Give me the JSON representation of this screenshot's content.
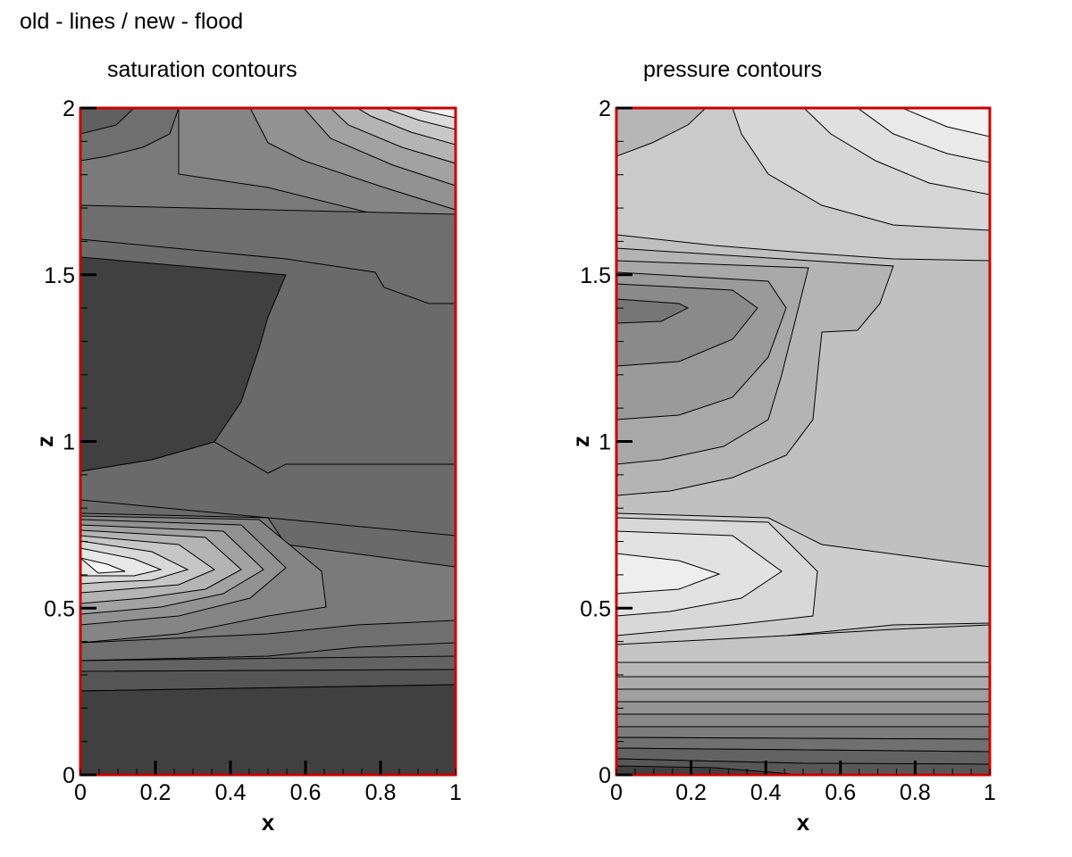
{
  "header": {
    "title": "old - lines / new - flood"
  },
  "chart_data": [
    {
      "type": "heatmap",
      "title": "saturation contours",
      "xlabel": "x",
      "ylabel": "z",
      "xlim": [
        0,
        1
      ],
      "ylim": [
        0,
        2
      ],
      "x_ticks": [
        "0",
        "0.2",
        "0.4",
        "0.6",
        "0.8",
        "1"
      ],
      "y_ticks": [
        "0",
        "0.5",
        "1",
        "1.5",
        "2"
      ],
      "frame_color": "#cc0000",
      "levels": [
        {
          "name": "dark core (upper)",
          "gray": "#404040",
          "x": [
            0,
            0.55,
            0.55,
            0.5,
            0.45,
            0.35,
            0.2,
            0
          ],
          "z": [
            1.55,
            1.5,
            1.5,
            1.35,
            1.1,
            1.0,
            0.94,
            0.91
          ]
        },
        {
          "name": "bottom band",
          "gray": "#404040",
          "x": [
            0,
            1,
            1,
            0
          ],
          "z": [
            0,
            0,
            0.27,
            0.25
          ]
        },
        {
          "name": "lower lobe apex",
          "gray": "#f4f4f4",
          "x_tip": 0.08,
          "z": 0.61
        }
      ],
      "range_description": "gray levels from #404040 (lowest) to #f8f8f8 (highest)"
    },
    {
      "type": "heatmap",
      "title": "pressure contours",
      "xlabel": "x",
      "ylabel": "z",
      "xlim": [
        0,
        1
      ],
      "ylim": [
        0,
        2
      ],
      "x_ticks": [
        "0",
        "0.2",
        "0.4",
        "0.6",
        "0.8",
        "1"
      ],
      "y_ticks": [
        "0",
        "0.5",
        "1",
        "1.5",
        "2"
      ],
      "frame_color": "#cc0000",
      "levels": [
        {
          "name": "mid lobe apex",
          "gray": "#707070",
          "x_tip": 0.2,
          "z": 1.4
        },
        {
          "name": "lower lobe apex",
          "gray": "#ececec",
          "x_tip": 0.28,
          "z": 0.6
        },
        {
          "name": "bottom corner",
          "gray": "#404040",
          "x_tip": 0.5,
          "z": 0.02
        }
      ],
      "range_description": "gray levels from #404040 (lowest) to #f4f4f4 (highest)"
    }
  ]
}
